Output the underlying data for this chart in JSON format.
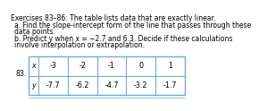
{
  "title_line1": "Exercises 83–86: The table lists data that are exactly linear.",
  "bullet_a": "a. Find the slope-intercept form of the line that passes through these",
  "bullet_a2": "data points.",
  "bullet_b": "b. Predict y when x = −2.7 and 6.3. Decide if these calculations",
  "bullet_b2": "involve interpolation or extrapolation.",
  "exercise_num": "83.",
  "row_x_label": "x",
  "row_y_label": "y",
  "x_values": [
    "-3",
    "-2",
    "-1",
    "0",
    "1"
  ],
  "y_values": [
    "-7.7",
    "-6.2",
    "-4.7",
    "-3.2",
    "-1.7"
  ],
  "bg_color": "#ffffff",
  "text_color": "#000000",
  "table_border_color": "#6aace6",
  "title_fontsize": 5.5,
  "body_fontsize": 5.5,
  "table_fontsize": 5.8
}
